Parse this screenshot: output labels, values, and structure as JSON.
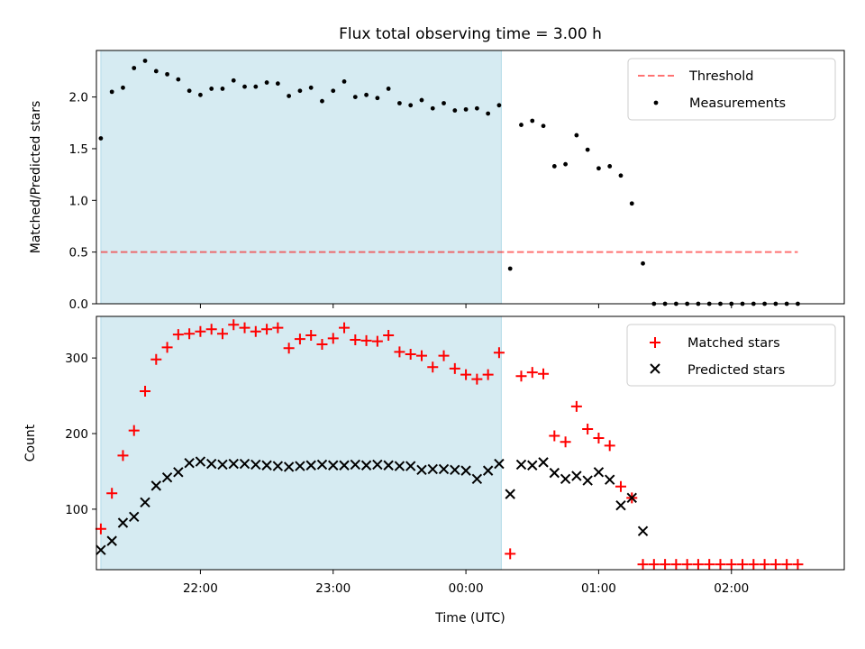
{
  "title": "Flux total observing time = 3.00 h",
  "colors": {
    "shade": "#add8e6",
    "threshold": "#ff0000",
    "measurement": "#000000",
    "matched": "#ff0000",
    "predicted": "#000000"
  },
  "chart_data": [
    {
      "type": "scatter",
      "ylabel": "Matched/Predicted stars",
      "ylim": [
        0,
        2.45
      ],
      "yticks": [
        0.0,
        0.5,
        1.0,
        1.5,
        2.0
      ],
      "ytick_labels": [
        "0.0",
        "0.5",
        "1.0",
        "1.5",
        "2.0"
      ],
      "xlim": [
        "21:13",
        "02:51"
      ],
      "shaded_span": [
        "21:15",
        "00:16"
      ],
      "legend_position": "upper right",
      "threshold": {
        "name": "Threshold",
        "value": 0.5,
        "x_range": [
          "21:15",
          "02:30"
        ],
        "style": "dashed"
      },
      "series": [
        {
          "name": "Measurements",
          "marker": "dot",
          "x": [
            "21:15",
            "21:20",
            "21:25",
            "21:30",
            "21:35",
            "21:40",
            "21:45",
            "21:50",
            "21:55",
            "22:00",
            "22:05",
            "22:10",
            "22:15",
            "22:20",
            "22:25",
            "22:30",
            "22:35",
            "22:40",
            "22:45",
            "22:50",
            "22:55",
            "23:00",
            "23:05",
            "23:10",
            "23:15",
            "23:20",
            "23:25",
            "23:30",
            "23:35",
            "23:40",
            "23:45",
            "23:50",
            "23:55",
            "00:00",
            "00:05",
            "00:10",
            "00:15",
            "00:20",
            "00:25",
            "00:30",
            "00:35",
            "00:40",
            "00:45",
            "00:50",
            "00:55",
            "01:00",
            "01:05",
            "01:10",
            "01:15",
            "01:20",
            "01:25",
            "01:30",
            "01:35",
            "01:40",
            "01:45",
            "01:50",
            "01:55",
            "02:00",
            "02:05",
            "02:10",
            "02:15",
            "02:20",
            "02:25",
            "02:30"
          ],
          "y": [
            1.6,
            2.05,
            2.09,
            2.28,
            2.35,
            2.25,
            2.22,
            2.17,
            2.06,
            2.02,
            2.08,
            2.08,
            2.16,
            2.1,
            2.1,
            2.14,
            2.13,
            2.01,
            2.06,
            2.09,
            1.96,
            2.06,
            2.15,
            2.0,
            2.02,
            1.99,
            2.08,
            1.94,
            1.92,
            1.97,
            1.89,
            1.94,
            1.87,
            1.88,
            1.89,
            1.84,
            1.92,
            0.34,
            1.73,
            1.77,
            1.72,
            1.33,
            1.35,
            1.63,
            1.49,
            1.31,
            1.33,
            1.24,
            0.97,
            0.39,
            0,
            0,
            0,
            0,
            0,
            0,
            0,
            0,
            0,
            0,
            0,
            0,
            0,
            0
          ]
        }
      ]
    },
    {
      "type": "scatter",
      "ylabel": "Count",
      "xlabel": "Time (UTC)",
      "ylim": [
        20,
        355
      ],
      "yticks": [
        100,
        200,
        300
      ],
      "ytick_labels": [
        "100",
        "200",
        "300"
      ],
      "xticks": [
        "22:00",
        "23:00",
        "00:00",
        "01:00",
        "02:00"
      ],
      "xtick_labels": [
        "22:00",
        "23:00",
        "00:00",
        "01:00",
        "02:00"
      ],
      "xlim": [
        "21:13",
        "02:51"
      ],
      "shaded_span": [
        "21:15",
        "00:16"
      ],
      "legend_position": "upper right",
      "series": [
        {
          "name": "Matched stars",
          "marker": "plus",
          "x": [
            "21:15",
            "21:20",
            "21:25",
            "21:30",
            "21:35",
            "21:40",
            "21:45",
            "21:50",
            "21:55",
            "22:00",
            "22:05",
            "22:10",
            "22:15",
            "22:20",
            "22:25",
            "22:30",
            "22:35",
            "22:40",
            "22:45",
            "22:50",
            "22:55",
            "23:00",
            "23:05",
            "23:10",
            "23:15",
            "23:20",
            "23:25",
            "23:30",
            "23:35",
            "23:40",
            "23:45",
            "23:50",
            "23:55",
            "00:00",
            "00:05",
            "00:10",
            "00:15",
            "00:20",
            "00:25",
            "00:30",
            "00:35",
            "00:40",
            "00:45",
            "00:50",
            "00:55",
            "01:00",
            "01:05",
            "01:10",
            "01:15",
            "01:20",
            "01:25",
            "01:30",
            "01:35",
            "01:40",
            "01:45",
            "01:50",
            "01:55",
            "02:00",
            "02:05",
            "02:10",
            "02:15",
            "02:20",
            "02:25",
            "02:30"
          ],
          "y": [
            74,
            121,
            171,
            204,
            256,
            298,
            314,
            331,
            332,
            335,
            338,
            332,
            344,
            340,
            335,
            338,
            340,
            313,
            325,
            330,
            318,
            326,
            340,
            324,
            323,
            322,
            330,
            308,
            305,
            303,
            288,
            303,
            286,
            278,
            272,
            278,
            307,
            41,
            276,
            281,
            279,
            197,
            189,
            236,
            206,
            194,
            184,
            130,
            115,
            27,
            27,
            27,
            27,
            27,
            27,
            27,
            27,
            27,
            27,
            27,
            27,
            27,
            27,
            27
          ]
        },
        {
          "name": "Predicted stars",
          "marker": "x",
          "x": [
            "21:15",
            "21:20",
            "21:25",
            "21:30",
            "21:35",
            "21:40",
            "21:45",
            "21:50",
            "21:55",
            "22:00",
            "22:05",
            "22:10",
            "22:15",
            "22:20",
            "22:25",
            "22:30",
            "22:35",
            "22:40",
            "22:45",
            "22:50",
            "22:55",
            "23:00",
            "23:05",
            "23:10",
            "23:15",
            "23:20",
            "23:25",
            "23:30",
            "23:35",
            "23:40",
            "23:45",
            "23:50",
            "23:55",
            "00:00",
            "00:05",
            "00:10",
            "00:15",
            "00:20",
            "00:25",
            "00:30",
            "00:35",
            "00:40",
            "00:45",
            "00:50",
            "00:55",
            "01:00",
            "01:05",
            "01:10",
            "01:15",
            "01:20"
          ],
          "y": [
            46,
            58,
            82,
            90,
            109,
            131,
            142,
            149,
            161,
            163,
            160,
            159,
            160,
            160,
            159,
            158,
            157,
            156,
            157,
            158,
            159,
            158,
            158,
            159,
            158,
            159,
            158,
            157,
            157,
            152,
            153,
            153,
            152,
            151,
            140,
            151,
            160,
            120,
            159,
            158,
            162,
            148,
            140,
            144,
            138,
            149,
            139,
            105,
            115,
            71
          ]
        }
      ]
    }
  ]
}
